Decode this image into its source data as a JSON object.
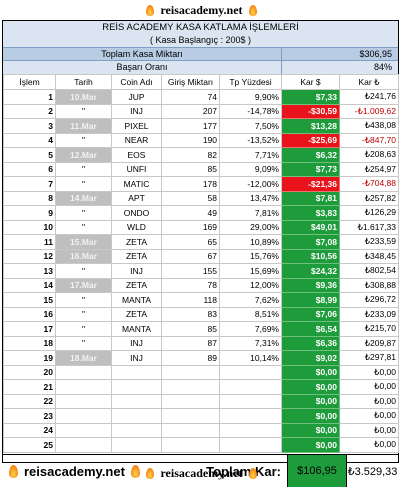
{
  "site": "reisacademy.net",
  "header": {
    "title": "REİS ACADEMY KASA KATLAMA İŞLEMLERİ",
    "subtitle": "( Kasa Başlangıç : 200$ )",
    "total_label": "Toplam Kasa Miktarı",
    "total_value": "$306,95",
    "rate_label": "Başarı Oranı",
    "rate_value": "84%"
  },
  "columns": [
    "İşlem",
    "Tarih",
    "Coin Adı",
    "Giriş Miktarı",
    "Tp Yüzdesi",
    "Kar $",
    "Kar ₺"
  ],
  "rows": [
    {
      "n": "1",
      "date": "10.Mar",
      "coin": "JUP",
      "giris": "74",
      "tp": "9,90%",
      "kar": "$7,33",
      "kartl": "₺241,76",
      "filled": true,
      "neg": false
    },
    {
      "n": "2",
      "date": "\"",
      "coin": "INJ",
      "giris": "207",
      "tp": "-14,78%",
      "kar": "-$30,59",
      "kartl": "-₺1.009,62",
      "filled": false,
      "neg": true
    },
    {
      "n": "3",
      "date": "11.Mar",
      "coin": "PIXEL",
      "giris": "177",
      "tp": "7,50%",
      "kar": "$13,28",
      "kartl": "₺438,08",
      "filled": true,
      "neg": false
    },
    {
      "n": "4",
      "date": "\"",
      "coin": "NEAR",
      "giris": "190",
      "tp": "-13,52%",
      "kar": "-$25,69",
      "kartl": "-₺847,70",
      "filled": false,
      "neg": true
    },
    {
      "n": "5",
      "date": "12.Mar",
      "coin": "EOS",
      "giris": "82",
      "tp": "7,71%",
      "kar": "$6,32",
      "kartl": "₺208,63",
      "filled": true,
      "neg": false
    },
    {
      "n": "6",
      "date": "\"",
      "coin": "UNFI",
      "giris": "85",
      "tp": "9,09%",
      "kar": "$7,73",
      "kartl": "₺254,97",
      "filled": false,
      "neg": false
    },
    {
      "n": "7",
      "date": "\"",
      "coin": "MATIC",
      "giris": "178",
      "tp": "-12,00%",
      "kar": "-$21,36",
      "kartl": "-₺704,88",
      "filled": false,
      "neg": true
    },
    {
      "n": "8",
      "date": "14.Mar",
      "coin": "APT",
      "giris": "58",
      "tp": "13,47%",
      "kar": "$7,81",
      "kartl": "₺257,82",
      "filled": true,
      "neg": false
    },
    {
      "n": "9",
      "date": "\"",
      "coin": "ONDO",
      "giris": "49",
      "tp": "7,81%",
      "kar": "$3,83",
      "kartl": "₺126,29",
      "filled": false,
      "neg": false
    },
    {
      "n": "10",
      "date": "\"",
      "coin": "WLD",
      "giris": "169",
      "tp": "29,00%",
      "kar": "$49,01",
      "kartl": "₺1.617,33",
      "filled": false,
      "neg": false
    },
    {
      "n": "11",
      "date": "15.Mar",
      "coin": "ZETA",
      "giris": "65",
      "tp": "10,89%",
      "kar": "$7,08",
      "kartl": "₺233,59",
      "filled": true,
      "neg": false
    },
    {
      "n": "12",
      "date": "16.Mar",
      "coin": "ZETA",
      "giris": "67",
      "tp": "15,76%",
      "kar": "$10,56",
      "kartl": "₺348,45",
      "filled": true,
      "neg": false
    },
    {
      "n": "13",
      "date": "\"",
      "coin": "INJ",
      "giris": "155",
      "tp": "15,69%",
      "kar": "$24,32",
      "kartl": "₺802,54",
      "filled": false,
      "neg": false
    },
    {
      "n": "14",
      "date": "17.Mar",
      "coin": "ZETA",
      "giris": "78",
      "tp": "12,00%",
      "kar": "$9,36",
      "kartl": "₺308,88",
      "filled": true,
      "neg": false
    },
    {
      "n": "15",
      "date": "\"",
      "coin": "MANTA",
      "giris": "118",
      "tp": "7,62%",
      "kar": "$8,99",
      "kartl": "₺296,72",
      "filled": false,
      "neg": false
    },
    {
      "n": "16",
      "date": "\"",
      "coin": "ZETA",
      "giris": "83",
      "tp": "8,51%",
      "kar": "$7,06",
      "kartl": "₺233,09",
      "filled": false,
      "neg": false
    },
    {
      "n": "17",
      "date": "\"",
      "coin": "MANTA",
      "giris": "85",
      "tp": "7,69%",
      "kar": "$6,54",
      "kartl": "₺215,70",
      "filled": false,
      "neg": false
    },
    {
      "n": "18",
      "date": "\"",
      "coin": "INJ",
      "giris": "87",
      "tp": "7,31%",
      "kar": "$6,36",
      "kartl": "₺209,87",
      "filled": false,
      "neg": false
    },
    {
      "n": "19",
      "date": "18.Mar",
      "coin": "INJ",
      "giris": "89",
      "tp": "10,14%",
      "kar": "$9,02",
      "kartl": "₺297,81",
      "filled": true,
      "neg": false
    },
    {
      "n": "20",
      "date": "",
      "coin": "",
      "giris": "",
      "tp": "",
      "kar": "$0,00",
      "kartl": "₺0,00",
      "filled": false,
      "neg": false
    },
    {
      "n": "21",
      "date": "",
      "coin": "",
      "giris": "",
      "tp": "",
      "kar": "$0,00",
      "kartl": "₺0,00",
      "filled": false,
      "neg": false
    },
    {
      "n": "22",
      "date": "",
      "coin": "",
      "giris": "",
      "tp": "",
      "kar": "$0,00",
      "kartl": "₺0,00",
      "filled": false,
      "neg": false
    },
    {
      "n": "23",
      "date": "",
      "coin": "",
      "giris": "",
      "tp": "",
      "kar": "$0,00",
      "kartl": "₺0,00",
      "filled": false,
      "neg": false
    },
    {
      "n": "24",
      "date": "",
      "coin": "",
      "giris": "",
      "tp": "",
      "kar": "$0,00",
      "kartl": "₺0,00",
      "filled": false,
      "neg": false
    },
    {
      "n": "25",
      "date": "",
      "coin": "",
      "giris": "",
      "tp": "",
      "kar": "$0,00",
      "kartl": "₺0,00",
      "filled": false,
      "neg": false
    }
  ],
  "footer": {
    "brand": "reisacademy.net",
    "label": "Toplam Kar:",
    "usd": "$106,95",
    "try": "₺3.529,33"
  },
  "colors": {
    "positive": "#1e9b3b",
    "negative": "#e8131b",
    "header_fill": "#dbe5f1",
    "total_fill": "#b8cce4"
  }
}
